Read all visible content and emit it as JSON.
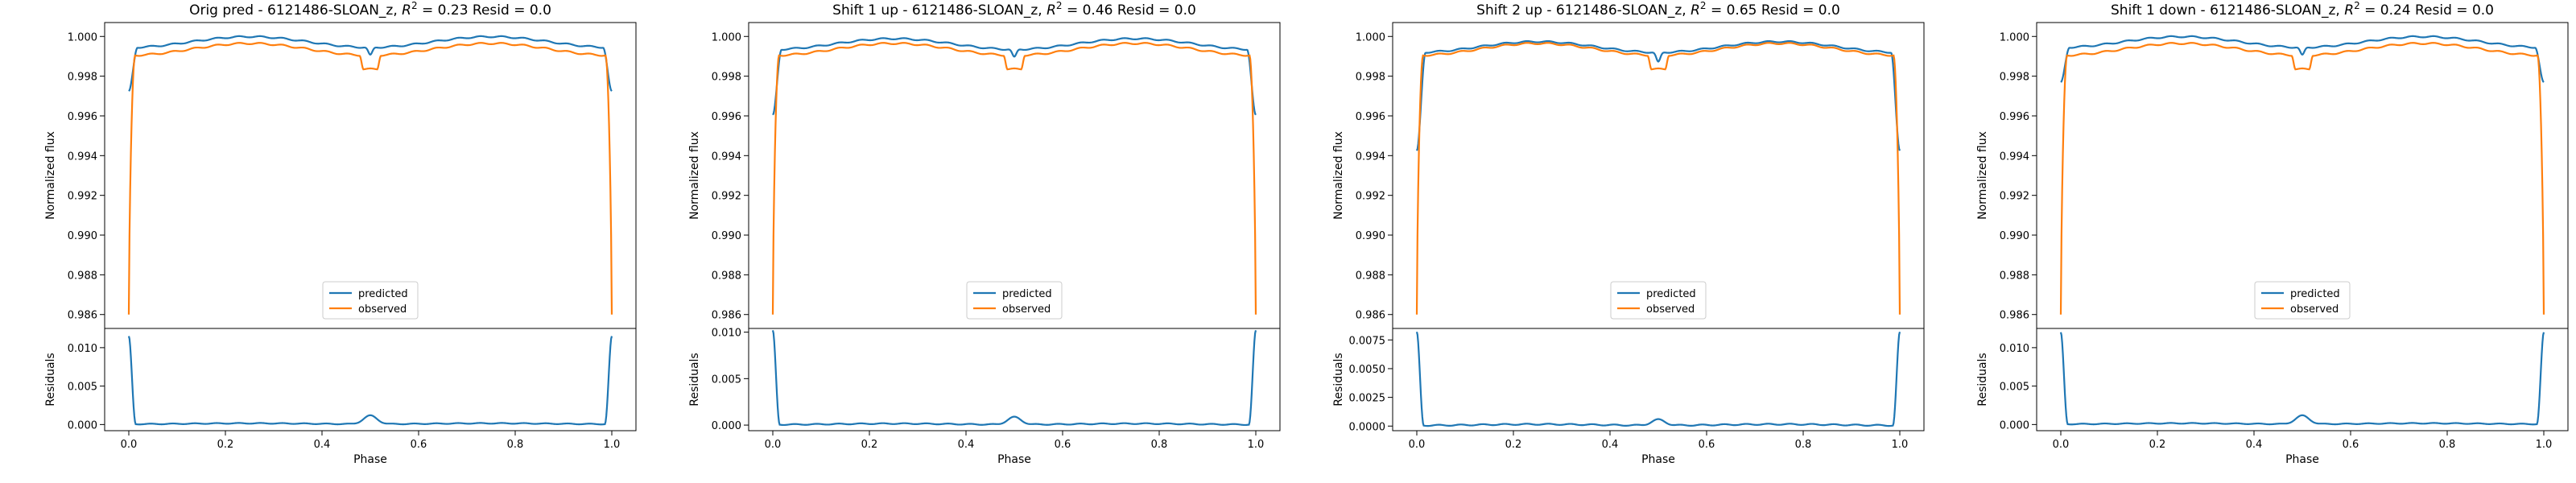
{
  "colors": {
    "predicted": "#1f77b4",
    "observed": "#ff7f0e"
  },
  "chart_data": [
    {
      "type": "line",
      "title": "Orig pred - 6121486-SLOAN_z, R² = 0.23 Resid = 0.0",
      "title_parts": {
        "prefix": "Orig pred - 6121486-SLOAN_z, ",
        "r": "R",
        "sup": "2",
        "eq": " = 0.23 Resid = 0.0"
      },
      "top": {
        "ylabel": "Normalized flux",
        "ylim": [
          0.9853,
          1.0007
        ],
        "yticks": [
          "1.000",
          "0.998",
          "0.996",
          "0.994",
          "0.992",
          "0.990",
          "0.988",
          "0.986"
        ],
        "legend": [
          "predicted",
          "observed"
        ],
        "pred_plateau": 0.99945,
        "pred_edge": 0.99725,
        "obs_plateau": 0.99905,
        "dip_pred": 0.99905,
        "dip_obs": 0.99835
      },
      "bottom": {
        "ylabel": "Residuals",
        "ylim": [
          -0.0008,
          0.0125
        ],
        "yticks": [
          "0.010",
          "0.005",
          "0.000"
        ],
        "edge_max": 0.0115,
        "peak": 0.0011
      },
      "xlabel": "Phase",
      "xlim": [
        -0.05,
        1.05
      ],
      "xticks": [
        "0.0",
        "0.2",
        "0.4",
        "0.6",
        "0.8",
        "1.0"
      ]
    },
    {
      "type": "line",
      "title": "Shift 1 up - 6121486-SLOAN_z, R² = 0.46 Resid = 0.0",
      "title_parts": {
        "prefix": "Shift 1 up - 6121486-SLOAN_z, ",
        "r": "R",
        "sup": "2",
        "eq": " = 0.46 Resid = 0.0"
      },
      "top": {
        "ylabel": "Normalized flux",
        "ylim": [
          0.9853,
          1.0007
        ],
        "yticks": [
          "1.000",
          "0.998",
          "0.996",
          "0.994",
          "0.992",
          "0.990",
          "0.988",
          "0.986"
        ],
        "legend": [
          "predicted",
          "observed"
        ],
        "pred_plateau": 0.99935,
        "pred_edge": 0.99605,
        "obs_plateau": 0.99905,
        "dip_pred": 0.99895,
        "dip_obs": 0.99835
      },
      "bottom": {
        "ylabel": "Residuals",
        "ylim": [
          -0.0006,
          0.0104
        ],
        "yticks": [
          "0.010",
          "0.005",
          "0.000"
        ],
        "edge_max": 0.0102,
        "peak": 0.0008
      },
      "xlabel": "Phase",
      "xlim": [
        -0.05,
        1.05
      ],
      "xticks": [
        "0.0",
        "0.2",
        "0.4",
        "0.6",
        "0.8",
        "1.0"
      ]
    },
    {
      "type": "line",
      "title": "Shift 2 up - 6121486-SLOAN_z, R² = 0.65 Resid = 0.0",
      "title_parts": {
        "prefix": "Shift 2 up - 6121486-SLOAN_z, ",
        "r": "R",
        "sup": "2",
        "eq": " = 0.65 Resid = 0.0"
      },
      "top": {
        "ylabel": "Normalized flux",
        "ylim": [
          0.9853,
          1.0007
        ],
        "yticks": [
          "1.000",
          "0.998",
          "0.996",
          "0.994",
          "0.992",
          "0.990",
          "0.988",
          "0.986"
        ],
        "legend": [
          "predicted",
          "observed"
        ],
        "pred_plateau": 0.9992,
        "pred_edge": 0.99425,
        "obs_plateau": 0.99905,
        "dip_pred": 0.9987,
        "dip_obs": 0.99835
      },
      "bottom": {
        "ylabel": "Residuals",
        "ylim": [
          -0.0004,
          0.0085
        ],
        "yticks": [
          "0.0075",
          "0.0050",
          "0.0025",
          "0.0000"
        ],
        "edge_max": 0.0082,
        "peak": 0.0005
      },
      "xlabel": "Phase",
      "xlim": [
        -0.05,
        1.05
      ],
      "xticks": [
        "0.0",
        "0.2",
        "0.4",
        "0.6",
        "0.8",
        "1.0"
      ]
    },
    {
      "type": "line",
      "title": "Shift 1 down - 6121486-SLOAN_z, R² = 0.24 Resid = 0.0",
      "title_parts": {
        "prefix": "Shift 1 down - 6121486-SLOAN_z, ",
        "r": "R",
        "sup": "2",
        "eq": " = 0.24 Resid = 0.0"
      },
      "top": {
        "ylabel": "Normalized flux",
        "ylim": [
          0.9853,
          1.0007
        ],
        "yticks": [
          "1.000",
          "0.998",
          "0.996",
          "0.994",
          "0.992",
          "0.990",
          "0.988",
          "0.986"
        ],
        "legend": [
          "predicted",
          "observed"
        ],
        "pred_plateau": 0.99945,
        "pred_edge": 0.9977,
        "obs_plateau": 0.99905,
        "dip_pred": 0.99905,
        "dip_obs": 0.99835
      },
      "bottom": {
        "ylabel": "Residuals",
        "ylim": [
          -0.0008,
          0.0125
        ],
        "yticks": [
          "0.010",
          "0.005",
          "0.000"
        ],
        "edge_max": 0.012,
        "peak": 0.0011
      },
      "xlabel": "Phase",
      "xlim": [
        -0.05,
        1.05
      ],
      "xticks": [
        "0.0",
        "0.2",
        "0.4",
        "0.6",
        "0.8",
        "1.0"
      ]
    }
  ]
}
